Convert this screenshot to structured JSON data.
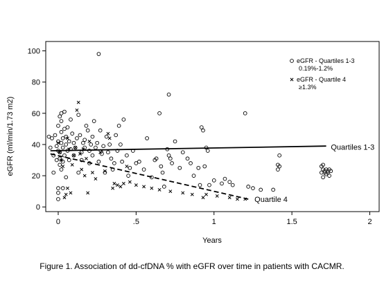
{
  "chart_data": {
    "type": "scatter",
    "title": "",
    "xlabel": "Years",
    "ylabel": "eGFR (ml/min/1.73 m2)",
    "xlim": [
      -0.08,
      2.06
    ],
    "ylim": [
      -3,
      106
    ],
    "x_ticks": [
      0,
      0.5,
      1,
      1.5,
      2
    ],
    "x_tick_labels": [
      "0",
      ".5",
      "1",
      "1.5",
      "2"
    ],
    "y_ticks": [
      0,
      20,
      40,
      60,
      80,
      100
    ],
    "y_tick_labels": [
      "0",
      "20",
      "40",
      "60",
      "80",
      "100"
    ],
    "grid": false,
    "legend_position": "top-right",
    "legend": [
      {
        "marker": "o",
        "lines": [
          "eGFR - Quartiles 1-3",
          "0.19%-1.2%"
        ]
      },
      {
        "marker": "x",
        "lines": [
          "eGFR - Quartile 4",
          "≥1.3%"
        ]
      }
    ],
    "series": [
      {
        "name": "eGFR - Quartiles 1-3",
        "marker": "circle",
        "points": [
          [
            -0.06,
            45
          ],
          [
            -0.05,
            38
          ],
          [
            -0.04,
            44
          ],
          [
            -0.03,
            22
          ],
          [
            -0.03,
            33
          ],
          [
            -0.02,
            46
          ],
          [
            -0.01,
            30
          ],
          [
            -0.01,
            39
          ],
          [
            0.0,
            36
          ],
          [
            0.0,
            42
          ],
          [
            0.0,
            52
          ],
          [
            0.0,
            12
          ],
          [
            0.0,
            9
          ],
          [
            0.0,
            5
          ],
          [
            0.01,
            58
          ],
          [
            0.01,
            27
          ],
          [
            0.01,
            31
          ],
          [
            0.01,
            35
          ],
          [
            0.02,
            41
          ],
          [
            0.02,
            48
          ],
          [
            0.02,
            55
          ],
          [
            0.02,
            60
          ],
          [
            0.02,
            24
          ],
          [
            0.03,
            44
          ],
          [
            0.03,
            29
          ],
          [
            0.03,
            38
          ],
          [
            0.03,
            12
          ],
          [
            0.04,
            50
          ],
          [
            0.04,
            61
          ],
          [
            0.04,
            33
          ],
          [
            0.05,
            40
          ],
          [
            0.05,
            19
          ],
          [
            0.05,
            45
          ],
          [
            0.06,
            36
          ],
          [
            0.06,
            51
          ],
          [
            0.07,
            42
          ],
          [
            0.07,
            30
          ],
          [
            0.08,
            37
          ],
          [
            0.08,
            56
          ],
          [
            0.09,
            47
          ],
          [
            0.1,
            41
          ],
          [
            0.1,
            33
          ],
          [
            0.11,
            38
          ],
          [
            0.12,
            44
          ],
          [
            0.13,
            22
          ],
          [
            0.13,
            59
          ],
          [
            0.14,
            46
          ],
          [
            0.15,
            35
          ],
          [
            0.15,
            30
          ],
          [
            0.16,
            41
          ],
          [
            0.17,
            38
          ],
          [
            0.17,
            43
          ],
          [
            0.18,
            52
          ],
          [
            0.19,
            49
          ],
          [
            0.2,
            36
          ],
          [
            0.2,
            28
          ],
          [
            0.21,
            40
          ],
          [
            0.22,
            33
          ],
          [
            0.22,
            45
          ],
          [
            0.23,
            55
          ],
          [
            0.24,
            38
          ],
          [
            0.25,
            41
          ],
          [
            0.26,
            29
          ],
          [
            0.27,
            49
          ],
          [
            0.28,
            34
          ],
          [
            0.29,
            39
          ],
          [
            0.3,
            22
          ],
          [
            0.31,
            45
          ],
          [
            0.32,
            35
          ],
          [
            0.33,
            40
          ],
          [
            0.34,
            31
          ],
          [
            0.35,
            24
          ],
          [
            0.36,
            28
          ],
          [
            0.37,
            46
          ],
          [
            0.38,
            36
          ],
          [
            0.39,
            52
          ],
          [
            0.4,
            40
          ],
          [
            0.41,
            29
          ],
          [
            0.42,
            56
          ],
          [
            0.44,
            33
          ],
          [
            0.45,
            20
          ],
          [
            0.46,
            25
          ],
          [
            0.48,
            36
          ],
          [
            0.5,
            28
          ],
          [
            0.52,
            29
          ],
          [
            0.55,
            24
          ],
          [
            0.57,
            44
          ],
          [
            0.6,
            19
          ],
          [
            0.62,
            30
          ],
          [
            0.63,
            31
          ],
          [
            0.65,
            60
          ],
          [
            0.66,
            26
          ],
          [
            0.67,
            22
          ],
          [
            0.68,
            13
          ],
          [
            0.7,
            37
          ],
          [
            0.71,
            33
          ],
          [
            0.72,
            31
          ],
          [
            0.73,
            28
          ],
          [
            0.75,
            42
          ],
          [
            0.78,
            25
          ],
          [
            0.8,
            35
          ],
          [
            0.83,
            31
          ],
          [
            0.85,
            28
          ],
          [
            0.87,
            20
          ],
          [
            0.9,
            25
          ],
          [
            0.91,
            14
          ],
          [
            0.92,
            51
          ],
          [
            0.93,
            49
          ],
          [
            0.94,
            26
          ],
          [
            0.95,
            38
          ],
          [
            0.96,
            36
          ],
          [
            0.97,
            14
          ],
          [
            1.0,
            17
          ],
          [
            1.05,
            15
          ],
          [
            1.07,
            18
          ],
          [
            1.1,
            16
          ],
          [
            1.12,
            14
          ],
          [
            1.2,
            60
          ],
          [
            1.22,
            13
          ],
          [
            1.25,
            12
          ],
          [
            1.3,
            11
          ],
          [
            1.38,
            11
          ],
          [
            1.41,
            24
          ],
          [
            1.41,
            27
          ],
          [
            1.42,
            26
          ],
          [
            1.42,
            33
          ],
          [
            0.26,
            98
          ],
          [
            0.71,
            72
          ],
          [
            1.69,
            22
          ],
          [
            1.69,
            26
          ],
          [
            1.7,
            24
          ],
          [
            1.7,
            27
          ],
          [
            1.7,
            19
          ],
          [
            1.71,
            23
          ],
          [
            1.71,
            22
          ],
          [
            1.72,
            24
          ],
          [
            1.72,
            21
          ],
          [
            1.73,
            23
          ],
          [
            1.73,
            22
          ],
          [
            1.74,
            24
          ],
          [
            1.74,
            20
          ],
          [
            1.75,
            23
          ]
        ]
      },
      {
        "name": "eGFR - Quartile 4",
        "marker": "x",
        "points": [
          [
            0.0,
            41
          ],
          [
            0.01,
            35
          ],
          [
            0.02,
            30
          ],
          [
            0.03,
            26
          ],
          [
            0.04,
            6
          ],
          [
            0.05,
            8
          ],
          [
            0.06,
            12
          ],
          [
            0.06,
            44
          ],
          [
            0.07,
            37
          ],
          [
            0.08,
            9
          ],
          [
            0.09,
            27
          ],
          [
            0.1,
            33
          ],
          [
            0.11,
            38
          ],
          [
            0.12,
            62
          ],
          [
            0.13,
            67
          ],
          [
            0.14,
            34
          ],
          [
            0.15,
            24
          ],
          [
            0.16,
            37
          ],
          [
            0.17,
            20
          ],
          [
            0.18,
            31
          ],
          [
            0.19,
            9
          ],
          [
            0.2,
            42
          ],
          [
            0.22,
            22
          ],
          [
            0.24,
            18
          ],
          [
            0.27,
            35
          ],
          [
            0.28,
            36
          ],
          [
            0.3,
            23
          ],
          [
            0.32,
            47
          ],
          [
            0.33,
            44
          ],
          [
            0.35,
            12
          ],
          [
            0.36,
            15
          ],
          [
            0.38,
            14
          ],
          [
            0.4,
            13
          ],
          [
            0.42,
            15
          ],
          [
            0.44,
            26
          ],
          [
            0.46,
            16
          ],
          [
            0.5,
            14
          ],
          [
            0.55,
            13
          ],
          [
            0.6,
            12
          ],
          [
            0.65,
            11
          ],
          [
            0.72,
            10
          ],
          [
            0.8,
            9
          ],
          [
            0.86,
            8
          ],
          [
            0.93,
            6
          ],
          [
            0.95,
            8
          ],
          [
            1.02,
            7
          ],
          [
            1.1,
            6
          ],
          [
            1.15,
            5
          ],
          [
            1.2,
            5
          ]
        ]
      }
    ],
    "fit_lines": [
      {
        "name": "Quartiles 1-3",
        "style": "solid",
        "x": [
          -0.05,
          1.72
        ],
        "y": [
          36,
          39
        ]
      },
      {
        "name": "Quartile 4",
        "style": "dashed",
        "x": [
          -0.05,
          1.22
        ],
        "y": [
          34,
          5
        ]
      }
    ],
    "annotations": [
      {
        "text": "Quartiles 1-3",
        "x": 1.75,
        "y": 38.5
      },
      {
        "text": "Quartile 4",
        "x": 1.26,
        "y": 5
      }
    ]
  },
  "caption": "Figure 1.  Association of dd-cfDNA % with eGFR over time in patients with CACMR."
}
